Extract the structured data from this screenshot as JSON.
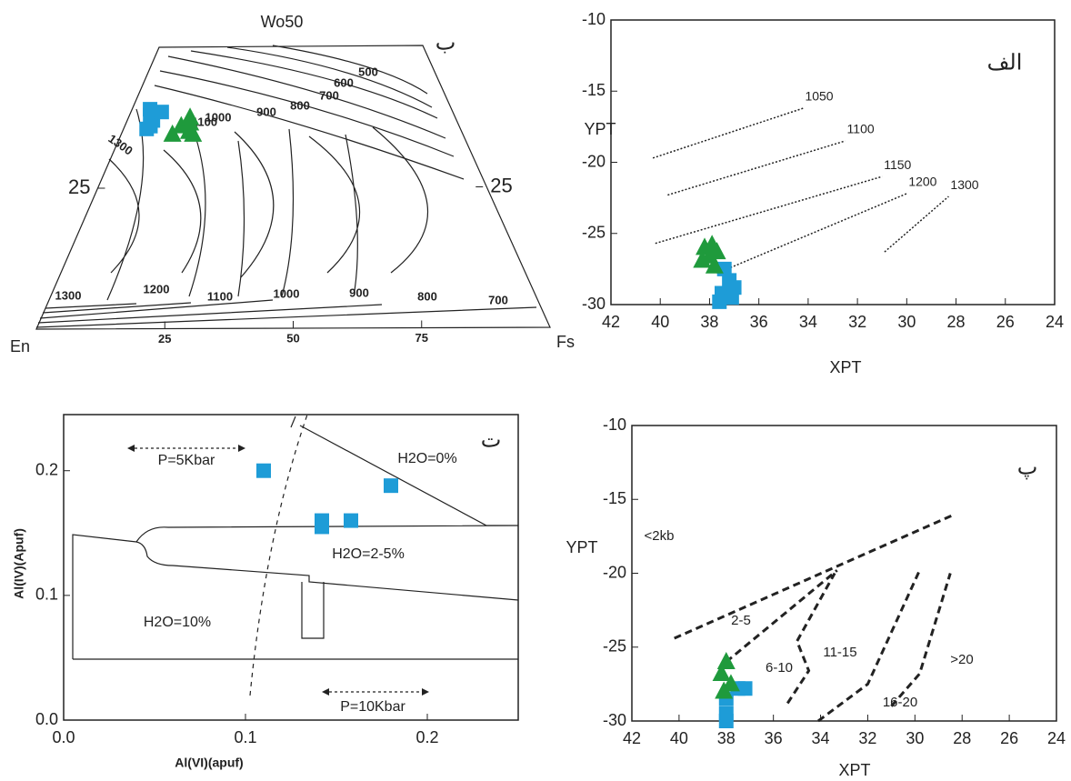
{
  "chart_data": [
    {
      "type": "ternary",
      "apex_label": "Wo50",
      "left_label": "En",
      "right_label": "Fs",
      "panel_label": "ب",
      "bottom_ticks": [
        25,
        50,
        75
      ],
      "side_ticks": [
        25
      ],
      "isotherms": [
        500,
        600,
        700,
        800,
        900,
        1000,
        1100,
        1300,
        1300,
        1200,
        1100,
        1000,
        900,
        800,
        700
      ],
      "series": [
        {
          "marker": "square",
          "color": "#1e9cd7",
          "fs": [
            4,
            5,
            3.5,
            6,
            5,
            4.5
          ],
          "wo": [
            38,
            37,
            39,
            38.5,
            36,
            35.5
          ]
        },
        {
          "marker": "triangle",
          "color": "#1f9a3c",
          "fs": [
            11,
            13,
            12,
            14,
            10,
            12.5
          ],
          "wo": [
            36,
            35,
            37.5,
            34.5,
            34.5,
            36.5
          ]
        }
      ]
    },
    {
      "type": "scatter",
      "panel_label": "الف",
      "xlabel": "XPT",
      "ylabel": "YPT",
      "xlim": [
        42,
        24
      ],
      "ylim": [
        -30,
        -10
      ],
      "xticks": [
        42,
        40,
        38,
        36,
        34,
        32,
        30,
        28,
        26,
        24
      ],
      "yticks": [
        -30,
        -25,
        -20,
        -15,
        -10
      ],
      "line_style": "dotted",
      "lines": [
        {
          "label": 1050,
          "x": [
            40.3,
            34.2
          ],
          "y": [
            -19.7,
            -16.2
          ]
        },
        {
          "label": 1100,
          "x": [
            39.7,
            32.5
          ],
          "y": [
            -22.3,
            -18.5
          ]
        },
        {
          "label": 1150,
          "x": [
            40.2,
            31.0
          ],
          "y": [
            -25.7,
            -21.0
          ]
        },
        {
          "label": 1200,
          "x": [
            37.7,
            30.0
          ],
          "y": [
            -27.8,
            -22.2
          ]
        },
        {
          "label": 1300,
          "x": [
            30.9,
            28.3
          ],
          "y": [
            -26.3,
            -22.4
          ]
        }
      ],
      "series": [
        {
          "marker": "square",
          "color": "#1e9cd7",
          "x": [
            37.4,
            37.2,
            37.5,
            37.1,
            37.6,
            37.0
          ],
          "y": [
            -27.5,
            -28.3,
            -29.2,
            -29.5,
            -29.8,
            -28.8
          ]
        },
        {
          "marker": "triangle",
          "color": "#1f9a3c",
          "x": [
            38.2,
            37.9,
            38.0,
            37.7,
            38.3,
            37.8
          ],
          "y": [
            -26.0,
            -25.8,
            -26.6,
            -26.3,
            -26.9,
            -27.3
          ]
        }
      ]
    },
    {
      "type": "scatter",
      "panel_label": "ت",
      "xlabel": "Al(VI)(apuf)",
      "ylabel": "Al(IV)(Apuf)",
      "xlim": [
        0,
        0.25
      ],
      "ylim": [
        0,
        0.245
      ],
      "xticks": [
        {
          "value": 0,
          "label": "0.0"
        },
        {
          "value": 0.1,
          "label": "0.1"
        },
        {
          "value": 0.2,
          "label": "0.2"
        }
      ],
      "yticks": [
        {
          "value": 0,
          "label": "0.0"
        },
        {
          "value": 0.1,
          "label": "0.1"
        },
        {
          "value": 0.2,
          "label": "0.2"
        }
      ],
      "annotations": [
        "P=5Kbar",
        "H2O=0%",
        "H2O=2-5%",
        "H2O=10%",
        "P=10Kbar"
      ],
      "series": [
        {
          "marker": "square",
          "color": "#1e9cd7",
          "x": [
            0.11,
            0.142,
            0.142,
            0.158,
            0.18
          ],
          "y": [
            0.2,
            0.16,
            0.155,
            0.16,
            0.188
          ]
        }
      ]
    },
    {
      "type": "scatter",
      "panel_label": "پ",
      "xlabel": "XPT",
      "ylabel": "YPT",
      "xlim": [
        42,
        24
      ],
      "ylim": [
        -30,
        -10
      ],
      "xticks": [
        42,
        40,
        38,
        36,
        34,
        32,
        30,
        28,
        26,
        24
      ],
      "yticks": [
        -30,
        -25,
        -20,
        -15,
        -10
      ],
      "line_style": "dashed",
      "lines": [
        {
          "x": [
            40.2,
            28.3
          ],
          "y": [
            -24.4,
            -16.0
          ]
        },
        {
          "x": [
            38.0,
            33.3
          ],
          "y": [
            -26.0,
            -19.8
          ]
        },
        {
          "x": [
            35.4,
            34.5,
            35.0,
            33.4
          ],
          "y": [
            -28.8,
            -26.6,
            -24.6,
            -20.0
          ]
        },
        {
          "x": [
            34.1,
            32.0,
            29.8
          ],
          "y": [
            -30.0,
            -27.5,
            -19.8
          ]
        },
        {
          "x": [
            31.0,
            29.8,
            28.5
          ],
          "y": [
            -29.0,
            -26.8,
            -20.0
          ]
        }
      ],
      "annotations": [
        "<2kb",
        "2-5",
        "6-10",
        "11-15",
        "16-20",
        ">20"
      ],
      "series": [
        {
          "marker": "square",
          "color": "#1e9cd7",
          "x": [
            37.5,
            37.2,
            38.0,
            38.0,
            38.0
          ],
          "y": [
            -27.8,
            -27.8,
            -28.5,
            -29.5,
            -30.0
          ]
        },
        {
          "marker": "triangle",
          "color": "#1f9a3c",
          "x": [
            38.0,
            38.2,
            37.8,
            38.1
          ],
          "y": [
            -26.0,
            -26.8,
            -27.5,
            -28.0
          ]
        }
      ]
    }
  ]
}
